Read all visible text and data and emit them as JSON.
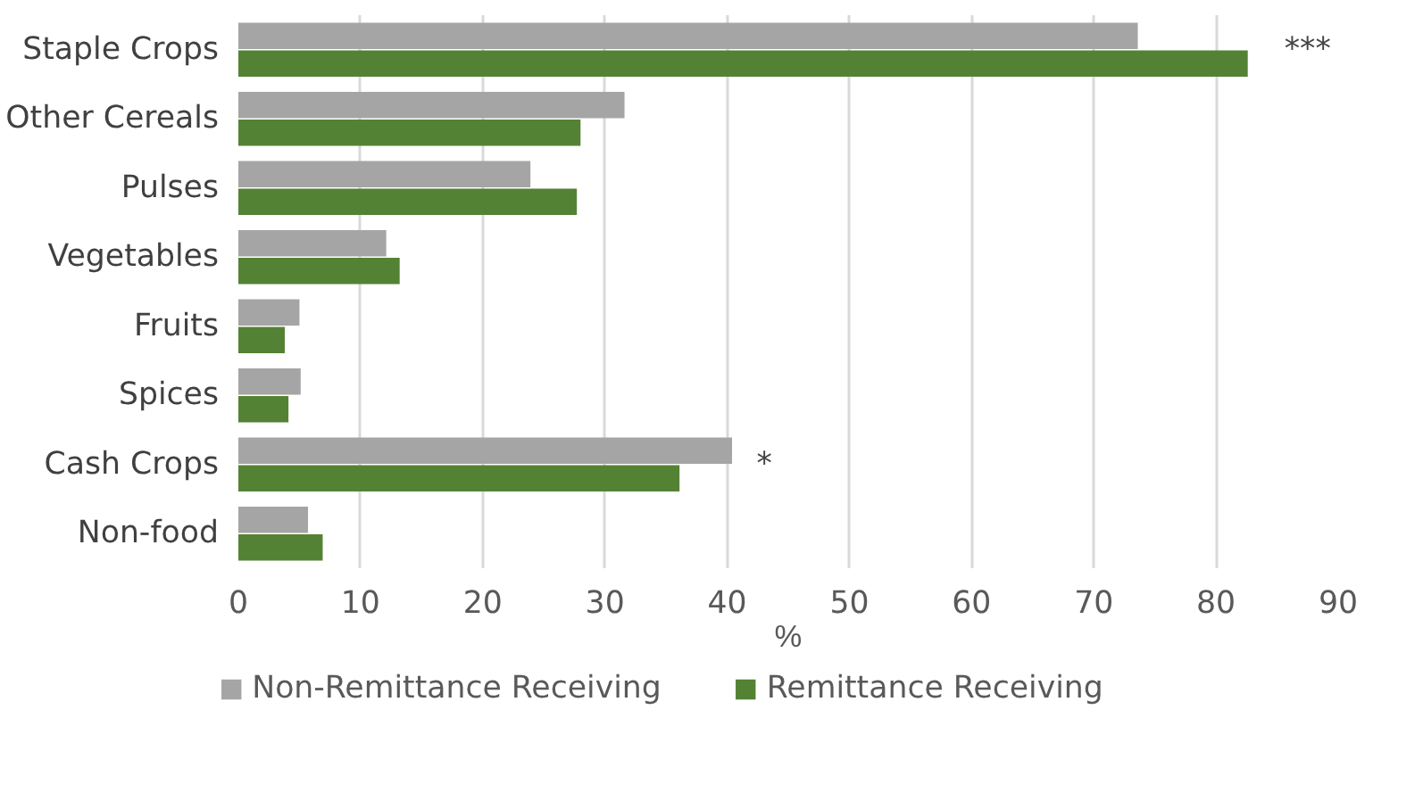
{
  "chart_data": {
    "type": "bar",
    "orientation": "horizontal",
    "categories": [
      "Staple Crops",
      "Other Cereals",
      "Pulses",
      "Vegetables",
      "Fruits",
      "Spices",
      "Cash Crops",
      "Non-food"
    ],
    "series": [
      {
        "name": "Non-Remittance Receiving",
        "color": "#a5a5a5",
        "values": [
          73.6,
          31.6,
          23.9,
          12.1,
          5.0,
          5.1,
          40.4,
          5.7
        ]
      },
      {
        "name": "Remittance Receiving",
        "color": "#548235",
        "values": [
          82.6,
          28.0,
          27.7,
          13.2,
          3.8,
          4.1,
          36.1,
          6.9
        ]
      }
    ],
    "xlim": [
      0,
      90
    ],
    "xticks": [
      0,
      10,
      20,
      30,
      40,
      50,
      60,
      70,
      80,
      90
    ],
    "xlabel": "%",
    "grid": "x",
    "legend": "bottom",
    "annotations": [
      "***",
      "*"
    ]
  }
}
